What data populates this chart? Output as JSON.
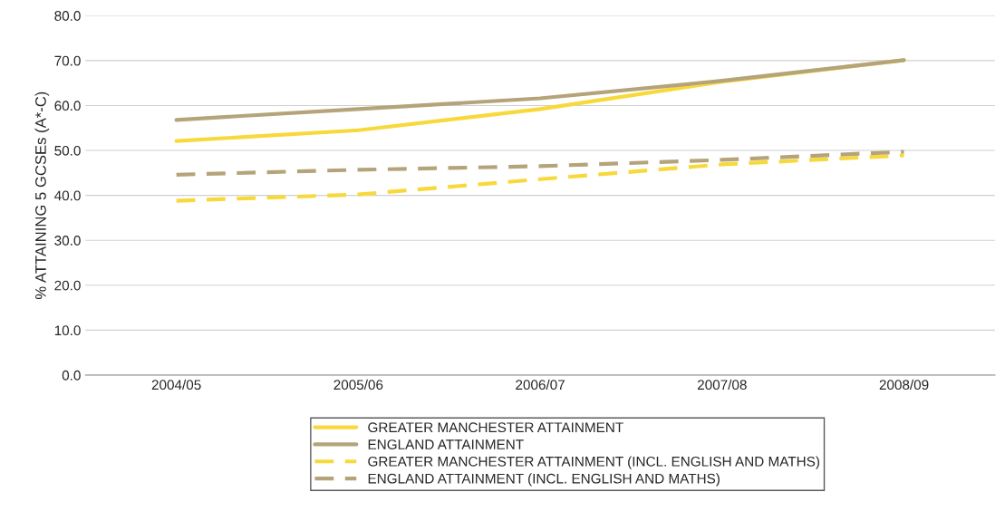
{
  "chart_data": {
    "type": "line",
    "ylabel": "% ATTAINING 5 GCSEs (A*-C)",
    "categories": [
      "2004/05",
      "2005/06",
      "2006/07",
      "2007/08",
      "2008/09"
    ],
    "series": [
      {
        "name": "GREATER MANCHESTER ATTAINMENT",
        "color": "#f7d93c",
        "line_style": "solid",
        "values": [
          52.1,
          54.5,
          59.2,
          65.3,
          70.1
        ]
      },
      {
        "name": "ENGLAND ATTAINMENT",
        "color": "#b5a47a",
        "line_style": "solid",
        "values": [
          56.8,
          59.2,
          61.6,
          65.5,
          70.1
        ]
      },
      {
        "name": "GREATER MANCHESTER ATTAINMENT (INCL. ENGLISH AND MATHS)",
        "color": "#f7d93c",
        "line_style": "dashed",
        "values": [
          38.8,
          40.2,
          43.6,
          46.9,
          48.9
        ]
      },
      {
        "name": "ENGLAND ATTAINMENT (INCL. ENGLISH AND MATHS)",
        "color": "#b5a47a",
        "line_style": "dashed",
        "values": [
          44.6,
          45.7,
          46.5,
          47.9,
          49.7
        ]
      }
    ],
    "ylim": [
      0,
      80
    ],
    "yticks": [
      {
        "value": 0,
        "label": "0.0"
      },
      {
        "value": 10,
        "label": "10.0"
      },
      {
        "value": 20,
        "label": "20.0"
      },
      {
        "value": 30,
        "label": "30.0"
      },
      {
        "value": 40,
        "label": "40.0"
      },
      {
        "value": 50,
        "label": "50.0"
      },
      {
        "value": 60,
        "label": "60.0"
      },
      {
        "value": 70,
        "label": "70.0"
      },
      {
        "value": 80,
        "label": "80.0"
      }
    ],
    "grid": "y",
    "legend": "bottom"
  }
}
